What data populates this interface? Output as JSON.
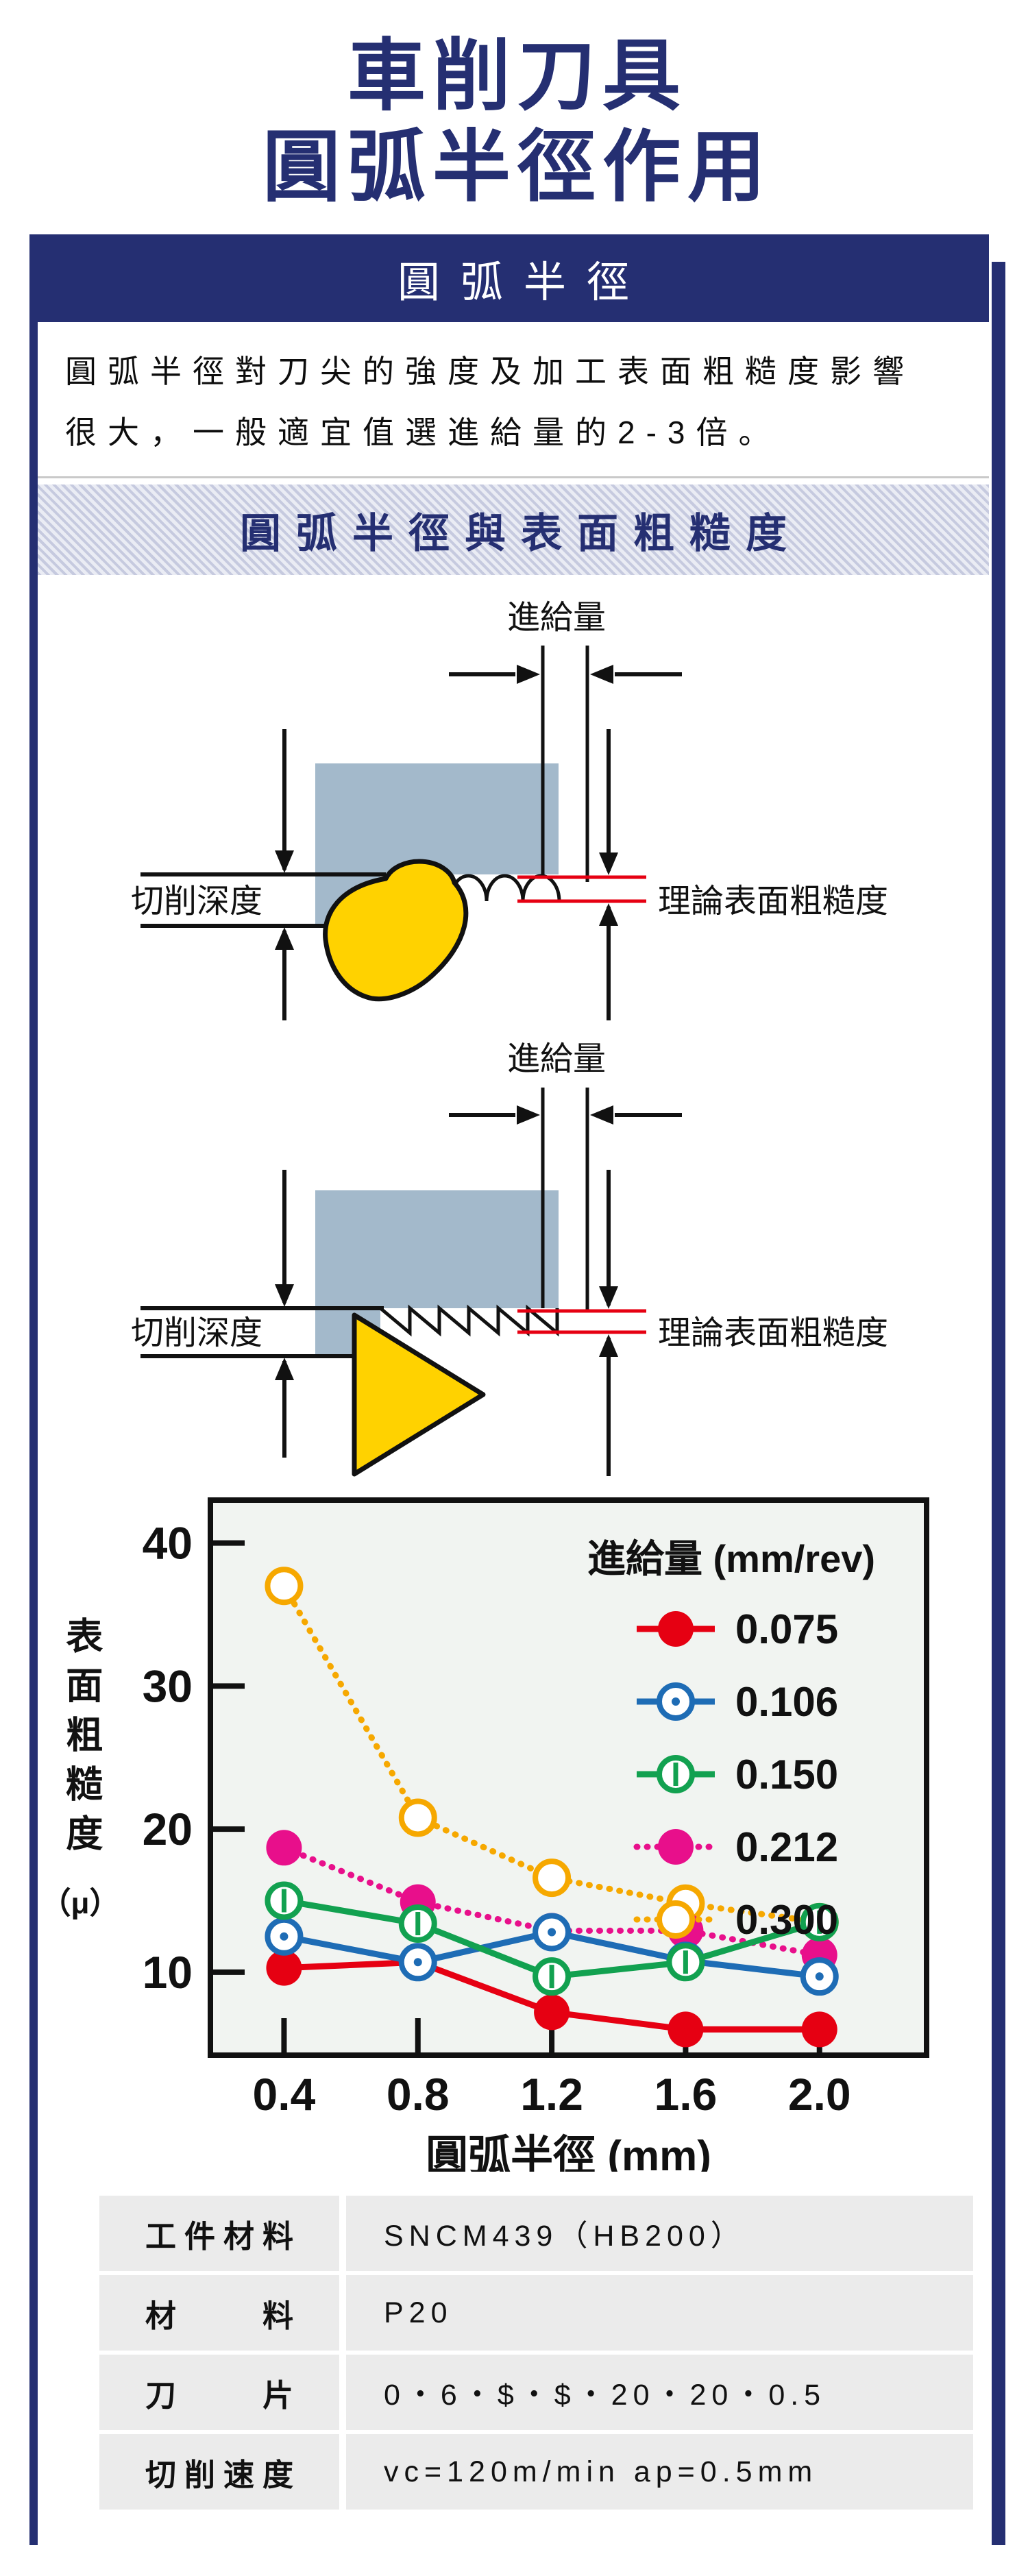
{
  "title": {
    "line1": "車削刀具",
    "line2": "圓弧半徑作用"
  },
  "sections": {
    "radius_header": "圓弧半徑",
    "intro_text": "圓弧半徑對刀尖的強度及加工表面粗糙度影響\n很大，一般適宜值選進給量的2-3倍。",
    "chart_section_title": "圓弧半徑與表面粗糙度"
  },
  "diagrams": {
    "feed_label": "進給量",
    "depth_label": "切削深度",
    "roughness_label": "理論表面粗糙度",
    "workpiece_color": "#a3b9cb",
    "insert_color": "#ffd200",
    "outline_color": "#111111",
    "roughness_line_color": "#e60012"
  },
  "chart_data": {
    "type": "line",
    "title_legend": "進給量 (mm/rev)",
    "xlabel": "圓弧半徑 (mm)",
    "ylabel_chars": "表面粗糙度",
    "ylabel_unit": "（μ）",
    "x": [
      0.4,
      0.8,
      1.2,
      1.6,
      2.0
    ],
    "xticks": [
      "0.4",
      "0.8",
      "1.2",
      "1.6",
      "2.0"
    ],
    "yticks": [
      10,
      20,
      30,
      40
    ],
    "xlim": [
      0.18,
      2.32
    ],
    "ylim": [
      4.2,
      43
    ],
    "grid": false,
    "legend_position": "top-right",
    "background": "#f1f4f1",
    "series": [
      {
        "name": "0.075",
        "color": "#e60012",
        "line": "solid",
        "marker": "filled",
        "values": [
          10.3,
          10.7,
          7.2,
          6.0,
          6.0
        ]
      },
      {
        "name": "0.106",
        "color": "#1e6cb5",
        "line": "solid",
        "marker": "open-dot",
        "values": [
          12.5,
          10.7,
          12.8,
          10.8,
          9.7
        ]
      },
      {
        "name": "0.150",
        "color": "#12a150",
        "line": "solid",
        "marker": "open-bar",
        "values": [
          15.0,
          13.4,
          9.7,
          10.7,
          13.5
        ]
      },
      {
        "name": "0.212",
        "color": "#e80f8b",
        "line": "dotted",
        "marker": "filled",
        "values": [
          18.7,
          14.9,
          12.9,
          12.9,
          11.2
        ]
      },
      {
        "name": "0.300",
        "color": "#f6a800",
        "line": "dotted",
        "marker": "open",
        "values": [
          37.0,
          20.8,
          16.6,
          14.8,
          13.5
        ]
      }
    ]
  },
  "table": {
    "rows": [
      {
        "label": "工件材料",
        "value": "SNCM439（HB200）"
      },
      {
        "label": "材　　料",
        "value": "P20"
      },
      {
        "label": "刀　　片",
        "value": "0・6・$・$・20・20・0.5"
      },
      {
        "label": "切削速度",
        "value": "vc=120m/min ap=0.5mm"
      }
    ]
  },
  "colors": {
    "navy": "#252f72",
    "workpiece": "#a3b9cb",
    "insert_yellow": "#ffd200",
    "roughness_red": "#e60012",
    "table_row_bg": "#ebebeb",
    "chart_bg": "#f1f4f1"
  }
}
